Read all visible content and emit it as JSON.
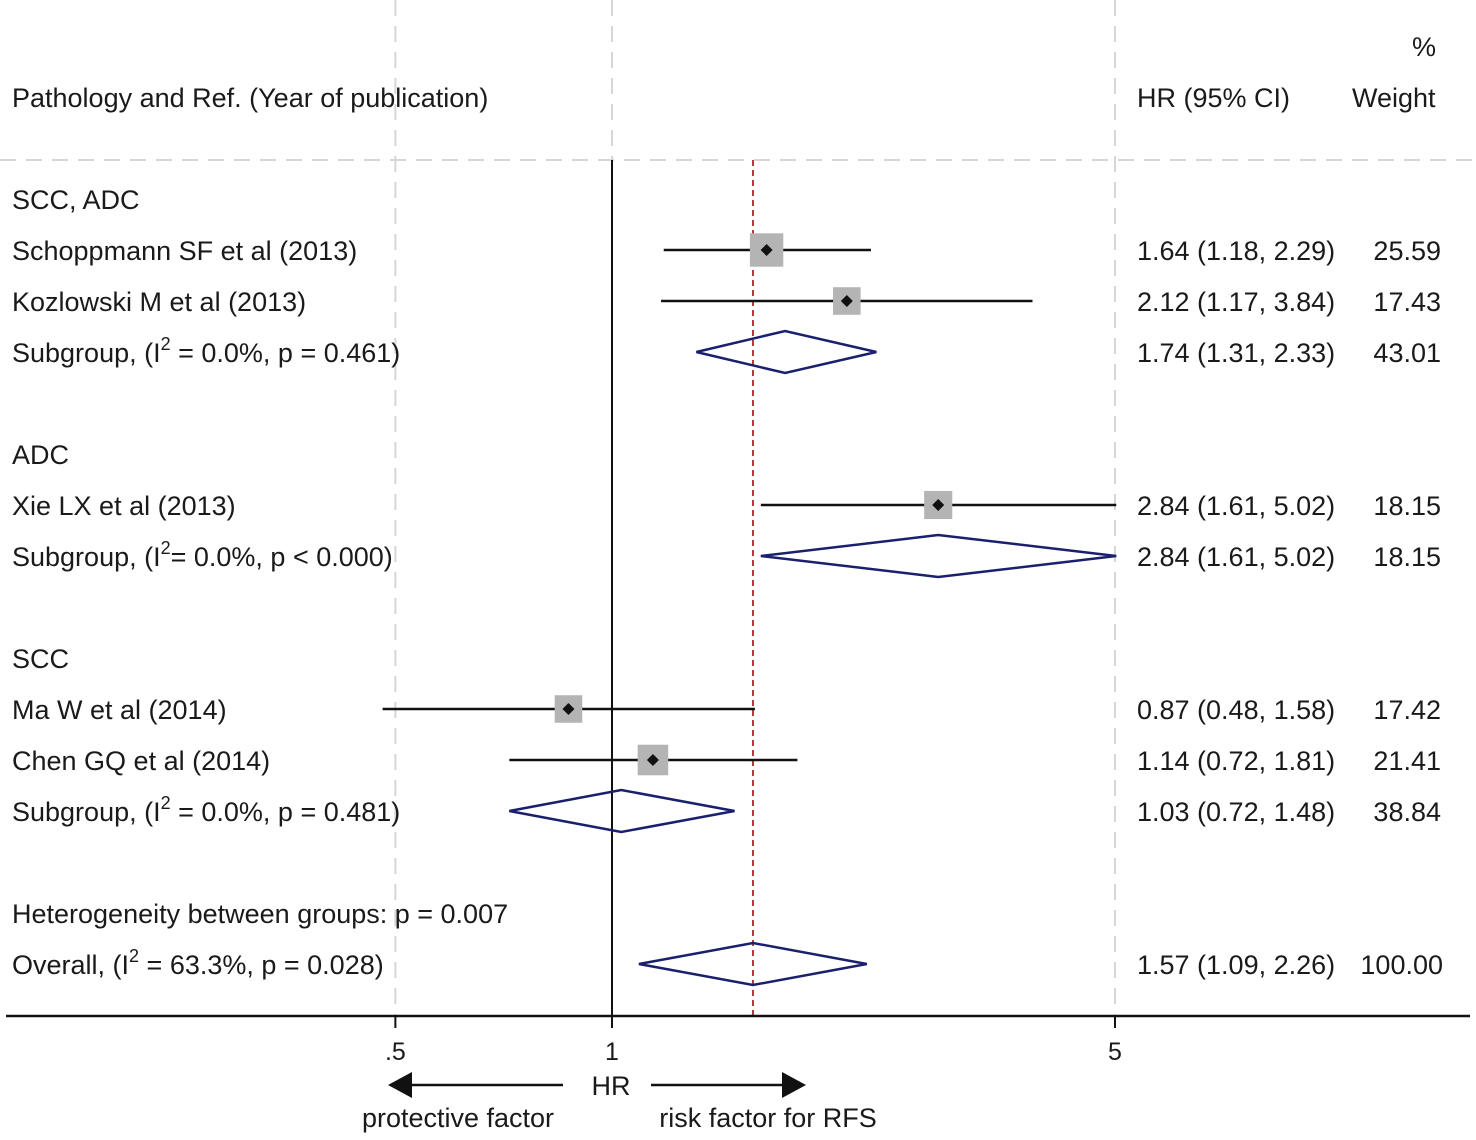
{
  "chart_data": {
    "type": "forest",
    "measure": "HR",
    "x_scale": "log",
    "xlim": [
      0.19,
      6.4
    ],
    "ticks": [
      {
        "value": 0.5,
        "label": ".5"
      },
      {
        "value": 1,
        "label": "1"
      },
      {
        "value": 5,
        "label": "5"
      }
    ],
    "header": {
      "study_column": "Pathology and Ref. (Year of publication)",
      "effect_column": "HR (95% CI)",
      "weight_column": [
        "%",
        "Weight"
      ]
    },
    "null_value": 1,
    "overall_effect_line": 1.57,
    "groups": [
      {
        "name": "SCC, ADC",
        "studies": [
          {
            "label": "Schoppmann SF et al (2013)",
            "hr": 1.64,
            "lo": 1.18,
            "hi": 2.29,
            "ci_text": "1.64 (1.18, 2.29)",
            "weight": "25.59"
          },
          {
            "label": "Kozlowski M et al (2013)",
            "hr": 2.12,
            "lo": 1.17,
            "hi": 3.84,
            "ci_text": "2.12 (1.17, 3.84)",
            "weight": "17.43"
          }
        ],
        "subgroup": {
          "label_prefix": "Subgroup,  (I",
          "sup": "2",
          "label_suffix": " = 0.0%, p = 0.461)",
          "hr": 1.74,
          "lo": 1.31,
          "hi": 2.33,
          "ci_text": "1.74 (1.31, 2.33)",
          "weight": "43.01"
        }
      },
      {
        "name": "ADC",
        "studies": [
          {
            "label": "Xie LX et al (2013)",
            "hr": 2.84,
            "lo": 1.61,
            "hi": 5.02,
            "ci_text": "2.84 (1.61, 5.02)",
            "weight": "18.15"
          }
        ],
        "subgroup": {
          "label_prefix": "Subgroup,  (I",
          "sup": "2",
          "label_suffix": "= 0.0%, p < 0.000)",
          "hr": 2.84,
          "lo": 1.61,
          "hi": 5.02,
          "ci_text": "2.84 (1.61, 5.02)",
          "weight": "18.15"
        }
      },
      {
        "name": "SCC",
        "studies": [
          {
            "label": "Ma W et al (2014)",
            "hr": 0.87,
            "lo": 0.48,
            "hi": 1.58,
            "ci_text": "0.87 (0.48, 1.58)",
            "weight": "17.42"
          },
          {
            "label": "Chen GQ et al (2014)",
            "hr": 1.14,
            "lo": 0.72,
            "hi": 1.81,
            "ci_text": "1.14 (0.72, 1.81)",
            "weight": "21.41"
          }
        ],
        "subgroup": {
          "label_prefix": "Subgroup,  (I",
          "sup": "2",
          "label_suffix": " = 0.0%, p = 0.481)",
          "hr": 1.03,
          "lo": 0.72,
          "hi": 1.48,
          "ci_text": "1.03 (0.72, 1.48)",
          "weight": "38.84"
        }
      }
    ],
    "heterogeneity_text": "Heterogeneity between groups: p = 0.007",
    "overall": {
      "label_prefix": "Overall,  (I",
      "sup": "2",
      "label_suffix": " = 63.3%, p = 0.028)",
      "hr": 1.57,
      "lo": 1.09,
      "hi": 2.26,
      "ci_text": "1.57 (1.09, 2.26)",
      "weight": "100.00"
    },
    "axis_footer": {
      "center_label": "HR",
      "left_label": "protective factor",
      "right_label": "risk factor for RFS"
    },
    "colors": {
      "diamond": "#1a1f6e",
      "effect_line": "#b03a3a",
      "box": "#b4b4b4",
      "grid": "#d6d6d6",
      "ink": "#111111"
    }
  }
}
